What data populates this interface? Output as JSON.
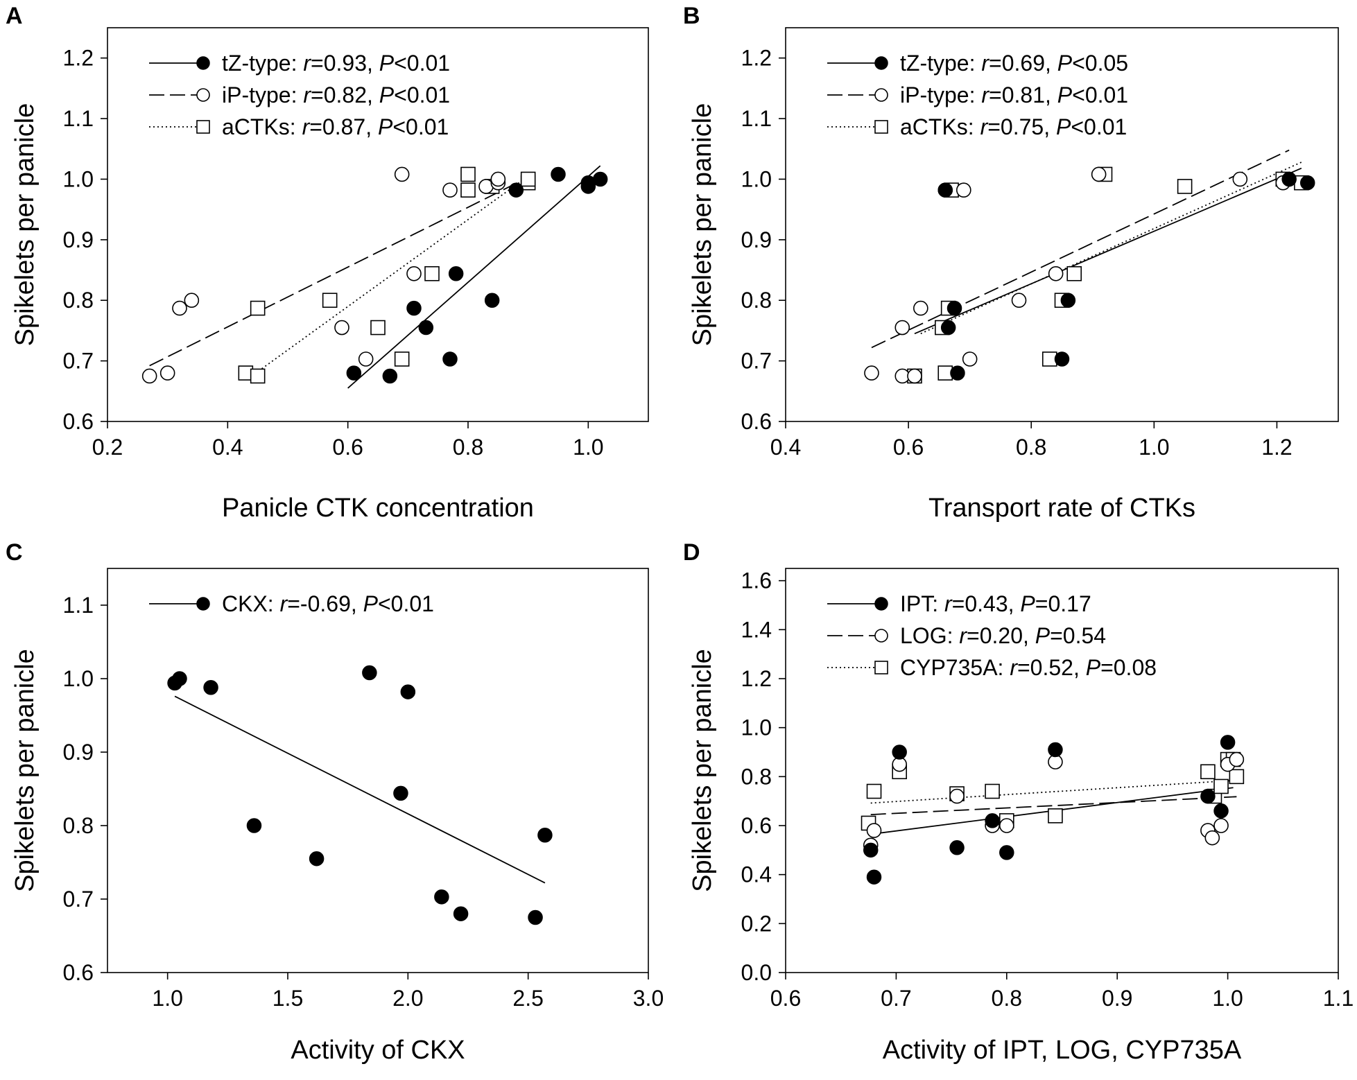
{
  "chart_data": [
    {
      "panel": "A",
      "type": "scatter",
      "xlabel": "Panicle CTK concentration",
      "ylabel": "Spikelets per panicle",
      "xlim": [
        0.2,
        1.1
      ],
      "ylim": [
        0.6,
        1.25
      ],
      "xticks": [
        "0.2",
        "0.4",
        "0.6",
        "0.8",
        "1.0"
      ],
      "yticks": [
        "0.6",
        "0.7",
        "0.8",
        "0.9",
        "1.0",
        "1.1",
        "1.2"
      ],
      "legend_position": "top-left",
      "series": [
        {
          "name": "tZ-type",
          "marker": "filled-circle",
          "line": "solid",
          "stats_r": "0.93",
          "stats_p": "<0.01",
          "x": [
            0.61,
            0.67,
            0.73,
            0.71,
            0.77,
            0.78,
            0.84,
            0.88,
            0.95,
            1.0,
            1.0,
            1.02
          ],
          "y": [
            0.68,
            0.675,
            0.755,
            0.787,
            0.703,
            0.844,
            0.8,
            0.982,
            1.008,
            0.994,
            0.988,
            1.0
          ],
          "fit": [
            [
              0.6,
              0.655
            ],
            [
              1.02,
              1.022
            ]
          ]
        },
        {
          "name": "iP-type",
          "marker": "open-circle",
          "line": "dashed",
          "stats_r": "0.82",
          "stats_p": "<0.01",
          "x": [
            0.27,
            0.3,
            0.32,
            0.34,
            0.59,
            0.63,
            0.69,
            0.71,
            0.77,
            0.83,
            0.85,
            0.85
          ],
          "y": [
            0.675,
            0.68,
            0.787,
            0.8,
            0.755,
            0.703,
            1.008,
            0.844,
            0.982,
            0.988,
            0.994,
            1.0
          ],
          "fit": [
            [
              0.27,
              0.692
            ],
            [
              0.89,
              0.998
            ]
          ]
        },
        {
          "name": "aCTKs",
          "marker": "open-square",
          "line": "dotted",
          "stats_r": "0.87",
          "stats_p": "<0.01",
          "x": [
            0.43,
            0.45,
            0.45,
            0.57,
            0.65,
            0.69,
            0.74,
            0.8,
            0.8,
            0.84,
            0.9,
            0.9
          ],
          "y": [
            0.68,
            0.675,
            0.787,
            0.8,
            0.755,
            0.703,
            0.844,
            0.982,
            1.008,
            0.988,
            0.994,
            1.0
          ],
          "fit": [
            [
              0.44,
              0.675
            ],
            [
              0.9,
              1.005
            ]
          ]
        }
      ]
    },
    {
      "panel": "B",
      "type": "scatter",
      "xlabel": "Transport rate of CTKs",
      "ylabel": "Spikelets per panicle",
      "xlim": [
        0.4,
        1.3
      ],
      "ylim": [
        0.6,
        1.25
      ],
      "xticks": [
        "0.4",
        "0.6",
        "0.8",
        "1.0",
        "1.2"
      ],
      "yticks": [
        "0.6",
        "0.7",
        "0.8",
        "0.9",
        "1.0",
        "1.1",
        "1.2"
      ],
      "legend_position": "top-left",
      "series": [
        {
          "name": "tZ-type",
          "marker": "filled-circle",
          "line": "solid",
          "stats_r": "0.69",
          "stats_p": "<0.05",
          "x": [
            0.66,
            0.665,
            0.675,
            0.68,
            0.85,
            0.86,
            1.22,
            1.25,
            0.66
          ],
          "y": [
            0.982,
            0.755,
            0.787,
            0.68,
            0.703,
            0.8,
            1.0,
            0.994,
            0.982
          ],
          "fit": [
            [
              0.61,
              0.745
            ],
            [
              1.24,
              1.018
            ]
          ]
        },
        {
          "name": "iP-type",
          "marker": "open-circle",
          "line": "dashed",
          "stats_r": "0.81",
          "stats_p": "<0.01",
          "x": [
            0.54,
            0.59,
            0.59,
            0.61,
            0.62,
            0.69,
            0.7,
            0.78,
            0.84,
            0.91,
            1.14,
            1.21
          ],
          "y": [
            0.68,
            0.675,
            0.755,
            0.675,
            0.787,
            0.982,
            0.703,
            0.8,
            0.844,
            1.008,
            1.0,
            0.994
          ],
          "fit": [
            [
              0.54,
              0.722
            ],
            [
              1.22,
              1.048
            ]
          ]
        },
        {
          "name": "aCTKs",
          "marker": "open-square",
          "line": "dotted",
          "stats_r": "0.75",
          "stats_p": "<0.01",
          "x": [
            0.61,
            0.655,
            0.66,
            0.665,
            0.67,
            0.83,
            0.85,
            0.87,
            0.92,
            1.05,
            1.21,
            1.24
          ],
          "y": [
            0.675,
            0.755,
            0.68,
            0.787,
            0.982,
            0.703,
            0.8,
            0.844,
            1.008,
            0.988,
            1.0,
            0.994
          ],
          "fit": [
            [
              0.62,
              0.745
            ],
            [
              1.24,
              1.028
            ]
          ]
        }
      ]
    },
    {
      "panel": "C",
      "type": "scatter",
      "xlabel": "Activity of CKX",
      "ylabel": "Spikelets per panicle",
      "xlim": [
        0.75,
        3.0
      ],
      "ylim": [
        0.6,
        1.15
      ],
      "xticks": [
        "1.0",
        "1.5",
        "2.0",
        "2.5",
        "3.0"
      ],
      "yticks": [
        "0.6",
        "0.7",
        "0.8",
        "0.9",
        "1.0",
        "1.1"
      ],
      "legend_position": "top-left",
      "series": [
        {
          "name": "CKX",
          "marker": "filled-circle",
          "line": "solid",
          "stats_r": "-0.69",
          "stats_p": "<0.01",
          "x": [
            1.03,
            1.05,
            1.18,
            1.36,
            1.62,
            1.84,
            1.97,
            2.0,
            2.14,
            2.22,
            2.53,
            2.57
          ],
          "y": [
            0.994,
            1.0,
            0.988,
            0.8,
            0.755,
            1.008,
            0.844,
            0.982,
            0.703,
            0.68,
            0.675,
            0.787
          ],
          "fit": [
            [
              1.03,
              0.976
            ],
            [
              2.57,
              0.722
            ]
          ]
        }
      ]
    },
    {
      "panel": "D",
      "type": "scatter",
      "xlabel": "Activity of IPT, LOG, CYP735A",
      "ylabel": "Spikelets per panicle",
      "xlim": [
        0.6,
        1.1
      ],
      "ylim": [
        0.0,
        1.65
      ],
      "xticks": [
        "0.6",
        "0.7",
        "0.8",
        "0.9",
        "1.0",
        "1.1"
      ],
      "yticks": [
        "0.0",
        "0.2",
        "0.4",
        "0.6",
        "0.8",
        "1.0",
        "1.2",
        "1.4",
        "1.6"
      ],
      "legend_position": "top-left",
      "series": [
        {
          "name": "IPT",
          "marker": "filled-circle",
          "line": "solid",
          "stats_r": "0.43",
          "stats_p": "=0.17",
          "x": [
            0.677,
            0.68,
            0.703,
            0.755,
            0.787,
            0.8,
            0.844,
            0.982,
            0.994,
            1.0
          ],
          "y": [
            0.5,
            0.39,
            0.9,
            0.51,
            0.62,
            0.49,
            0.91,
            0.72,
            0.66,
            0.94
          ],
          "fit": [
            [
              0.677,
              0.565
            ],
            [
              1.005,
              0.755
            ]
          ]
        },
        {
          "name": "LOG",
          "marker": "open-circle",
          "line": "dashed",
          "stats_r": "0.20",
          "stats_p": "=0.54",
          "x": [
            0.677,
            0.68,
            0.703,
            0.755,
            0.787,
            0.8,
            0.844,
            0.982,
            0.986,
            0.994,
            1.0,
            1.008
          ],
          "y": [
            0.52,
            0.58,
            0.85,
            0.72,
            0.6,
            0.6,
            0.86,
            0.58,
            0.55,
            0.6,
            0.85,
            0.87
          ],
          "fit": [
            [
              0.677,
              0.645
            ],
            [
              1.008,
              0.718
            ]
          ]
        },
        {
          "name": "CYP735A",
          "marker": "open-square",
          "line": "dotted",
          "stats_r": "0.52",
          "stats_p": "=0.08",
          "x": [
            0.675,
            0.68,
            0.703,
            0.755,
            0.787,
            0.8,
            0.844,
            0.982,
            0.988,
            0.994,
            1.0,
            1.005,
            1.008
          ],
          "y": [
            0.61,
            0.74,
            0.82,
            0.73,
            0.74,
            0.62,
            0.64,
            0.82,
            0.72,
            0.76,
            0.87,
            0.87,
            0.8
          ],
          "fit": [
            [
              0.677,
              0.692
            ],
            [
              1.008,
              0.785
            ]
          ]
        }
      ]
    }
  ]
}
